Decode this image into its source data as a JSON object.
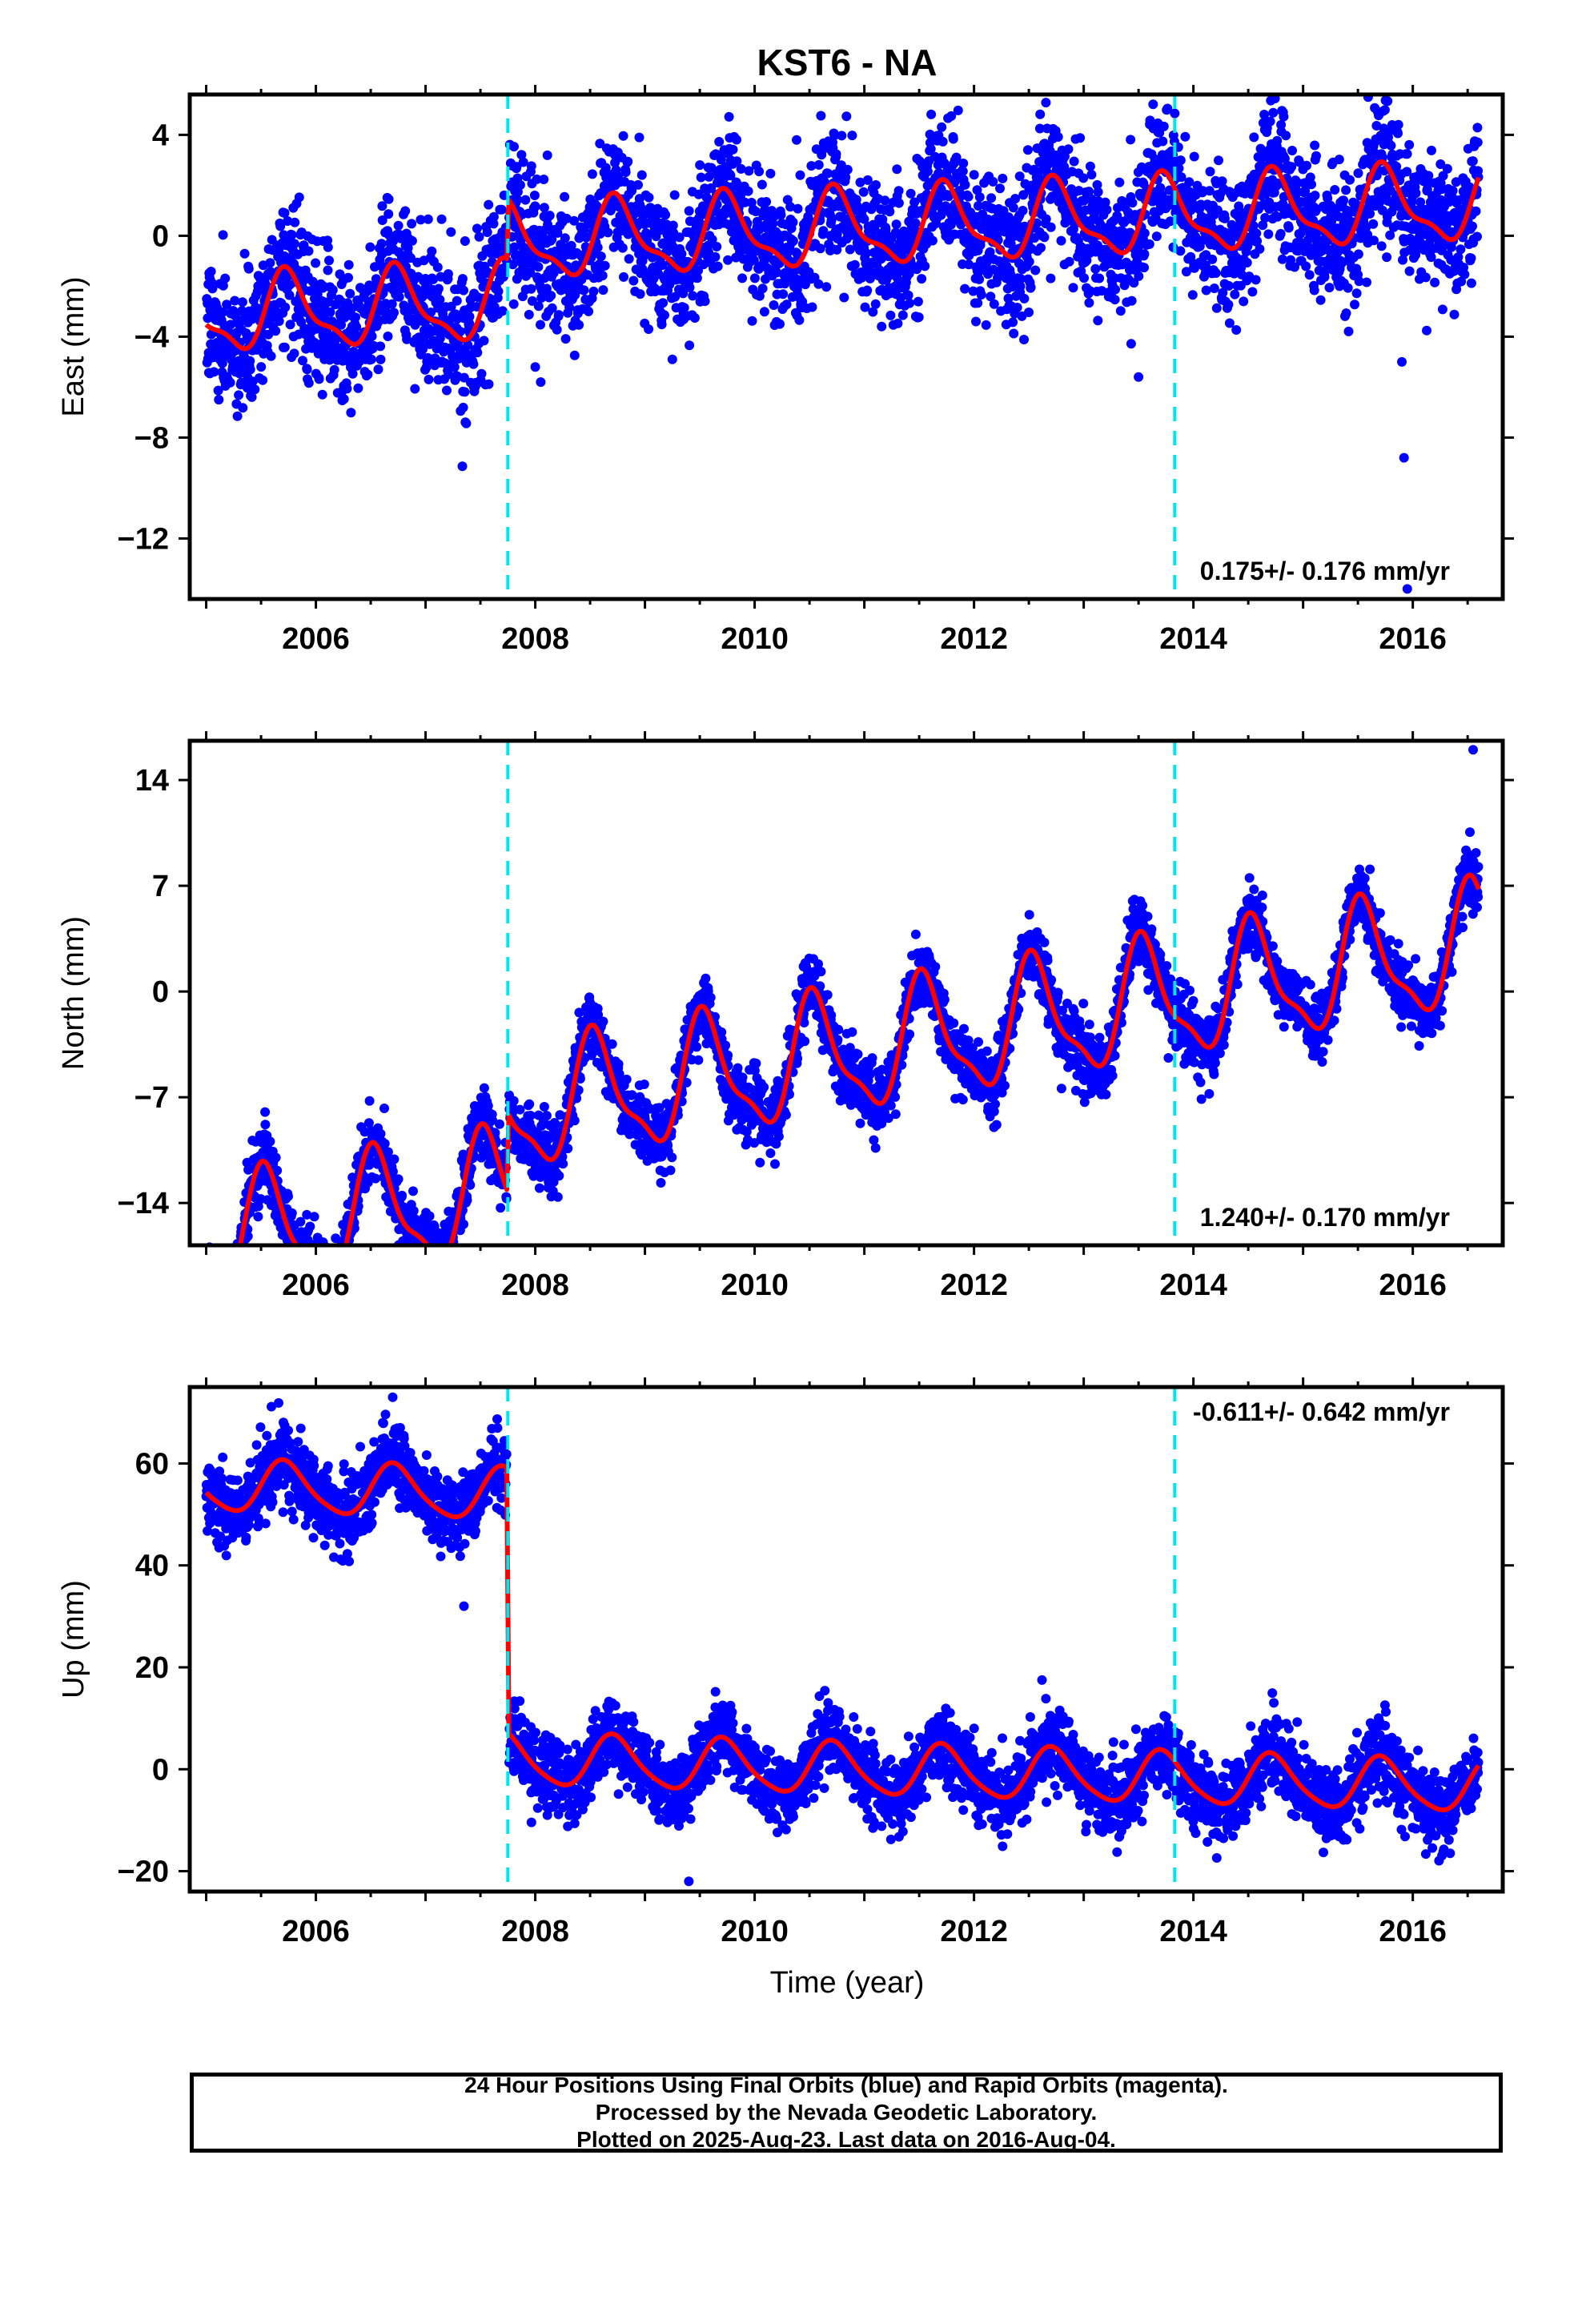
{
  "title": "KST6 - NA",
  "xlabel": "Time (year)",
  "x_ticks": [
    "2006",
    "2008",
    "2010",
    "2012",
    "2014",
    "2016"
  ],
  "footer": {
    "line1": "24 Hour Positions Using Final Orbits (blue) and Rapid Orbits (magenta).",
    "line2": "Processed by the Nevada Geodetic Laboratory.",
    "line3": "Plotted on 2025-Aug-23. Last data on 2016-Aug-04."
  },
  "colors": {
    "points": "#0000ff",
    "fit": "#ff0000",
    "steps": "#00e5ee",
    "frame": "#000000"
  },
  "chart_data": [
    {
      "type": "scatter",
      "ylabel": "East (mm)",
      "rate_label": "0.175+/- 0.176 mm/yr",
      "rate_position": "bottom-right",
      "xlim": [
        2004.85,
        2016.82
      ],
      "ylim": [
        -14.4,
        5.6
      ],
      "y_ticks": [
        4,
        0,
        -4,
        -8,
        -12
      ],
      "y_tick_labels": [
        "4",
        "0",
        "−4",
        "−8",
        "−12"
      ],
      "step_lines": [
        2007.75,
        2013.83
      ],
      "fit": {
        "segments": [
          [
            2005.0,
            2007.74
          ],
          [
            2007.76,
            2016.6
          ]
        ],
        "intercept": [
          -2.3,
          0.1
        ],
        "amplitude": 1.4,
        "secondary_amplitude": 0.5,
        "phase_peak": 0.75,
        "rate": 0.175
      },
      "scatter": {
        "x_range": [
          2005.0,
          2016.6
        ],
        "noise_sd": 1.3,
        "outliers": [
          [
            2008.0,
            -5.2
          ],
          [
            2008.05,
            -5.8
          ],
          [
            2009.25,
            -4.9
          ],
          [
            2013.5,
            -5.6
          ],
          [
            2015.9,
            -5.0
          ],
          [
            2015.92,
            -8.8
          ],
          [
            2015.95,
            -14.0
          ]
        ]
      }
    },
    {
      "type": "scatter",
      "ylabel": "North (mm)",
      "rate_label": "1.240+/- 0.170 mm/yr",
      "rate_position": "bottom-right",
      "xlim": [
        2004.85,
        2016.82
      ],
      "ylim": [
        -16.8,
        16.6
      ],
      "y_ticks": [
        14,
        7,
        0,
        -7,
        -14
      ],
      "y_tick_labels": [
        "14",
        "7",
        "0",
        "−7",
        "−14"
      ],
      "step_lines": [
        2007.75,
        2013.83
      ],
      "fit": {
        "segments": [
          [
            2005.0,
            2007.74
          ],
          [
            2007.76,
            2016.6
          ]
        ],
        "intercept": [
          -10.5,
          -5.2
        ],
        "amplitude": 3.8,
        "secondary_amplitude": 1.2,
        "phase_peak": 0.55,
        "rate": 1.24
      },
      "scatter": {
        "x_range": [
          2005.0,
          2016.6
        ],
        "noise_sd": 1.1,
        "outliers": [
          [
            2007.7,
            -11.8
          ],
          [
            2016.55,
            16.0
          ]
        ]
      }
    },
    {
      "type": "scatter",
      "ylabel": "Up (mm)",
      "rate_label": "-0.611+/- 0.642 mm/yr",
      "rate_position": "top-right",
      "xlim": [
        2004.85,
        2016.82
      ],
      "ylim": [
        -24,
        75
      ],
      "y_ticks": [
        60,
        40,
        20,
        0,
        -20
      ],
      "y_tick_labels": [
        "60",
        "40",
        "20",
        "0",
        "−20"
      ],
      "step_lines": [
        2007.75,
        2013.83
      ],
      "fit": {
        "segments": [
          [
            2005.0,
            2007.74
          ],
          [
            2007.76,
            2016.6
          ]
        ],
        "intercept": [
          52.5,
          0.5
        ],
        "amplitude": 5.0,
        "secondary_amplitude": 0.8,
        "phase_peak": 0.72,
        "rate": -0.611
      },
      "scatter": {
        "x_range": [
          2005.0,
          2016.6
        ],
        "noise_sd": 3.6,
        "outliers": [
          [
            2006.7,
            73.0
          ],
          [
            2007.35,
            32.0
          ],
          [
            2009.4,
            -22.0
          ]
        ]
      }
    }
  ]
}
